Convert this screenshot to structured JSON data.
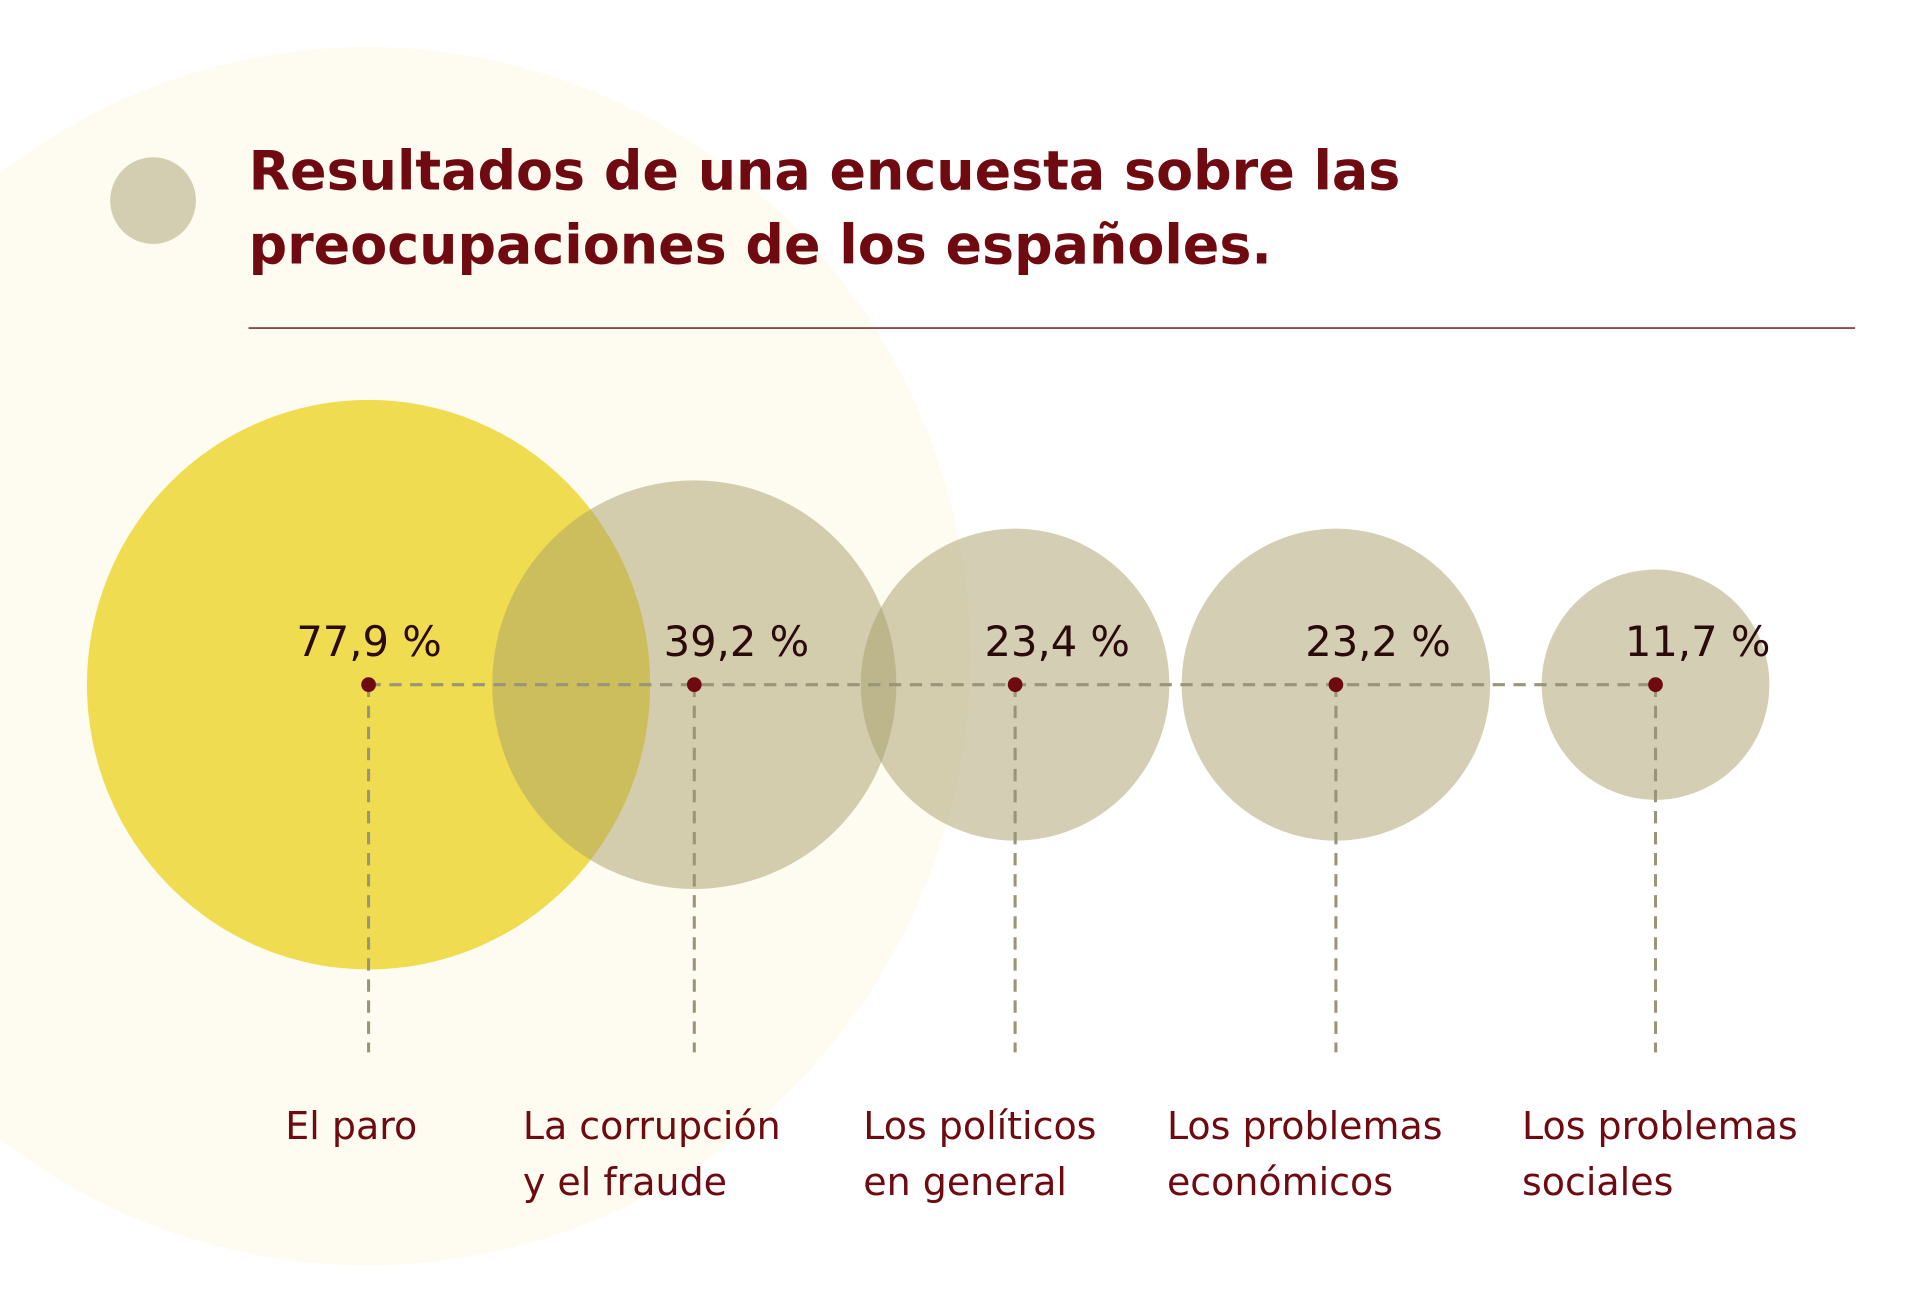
{
  "title_lines": [
    "Resultados de una encuesta sobre las",
    "preocupaciones de los españoles."
  ],
  "colors": {
    "title": "#6e0a10",
    "highlight": "#f0dc50",
    "bubble": "#a89e6a",
    "background_circle": "#fefbf0",
    "dot": "#6e0a10",
    "dash": "#9a9478"
  },
  "chart_data": {
    "type": "bubble",
    "title": "Resultados de una encuesta sobre las preocupaciones de los españoles.",
    "unit": "%",
    "categories": [
      [
        "El paro"
      ],
      [
        "La corrupción",
        "y el fraude"
      ],
      [
        "Los políticos",
        "en general"
      ],
      [
        "Los problemas",
        "económicos"
      ],
      [
        "Los problemas",
        "sociales"
      ]
    ],
    "values": [
      77.9,
      39.2,
      23.4,
      23.2,
      11.7
    ],
    "value_labels": [
      "77,9 %",
      "39,2 %",
      "23,4 %",
      "23,2 %",
      "11,7 %"
    ],
    "highlighted_index": 0
  }
}
